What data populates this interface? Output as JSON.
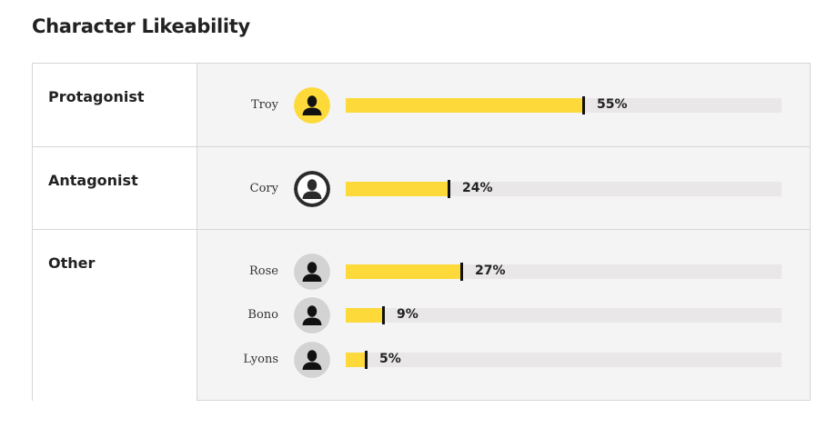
{
  "title": "Character Likeability",
  "chart_data": {
    "type": "bar",
    "title": "Character Likeability",
    "unit": "%",
    "xlim": [
      0,
      100
    ],
    "groups": [
      {
        "label": "Protagonist",
        "characters": [
          {
            "name": "Troy",
            "value": 55,
            "display": "55%",
            "avatar": "person-silhouette-icon",
            "avatar_color": "#fdd93a"
          }
        ]
      },
      {
        "label": "Antagonist",
        "characters": [
          {
            "name": "Cory",
            "value": 24,
            "display": "24%",
            "avatar": "person-silhouette-icon",
            "avatar_color": "#2b2b2b"
          }
        ]
      },
      {
        "label": "Other",
        "characters": [
          {
            "name": "Rose",
            "value": 27,
            "display": "27%",
            "avatar": "person-silhouette-icon",
            "avatar_color": "#d3d3d3"
          },
          {
            "name": "Bono",
            "value": 9,
            "display": "9%",
            "avatar": "person-silhouette-icon",
            "avatar_color": "#d3d3d3"
          },
          {
            "name": "Lyons",
            "value": 5,
            "display": "5%",
            "avatar": "person-silhouette-icon",
            "avatar_color": "#d3d3d3"
          }
        ]
      }
    ]
  },
  "colors": {
    "bar_fill": "#fdd93a",
    "bar_track": "#e9e7e7",
    "marker": "#111111",
    "table_border": "#d6d6d6"
  }
}
